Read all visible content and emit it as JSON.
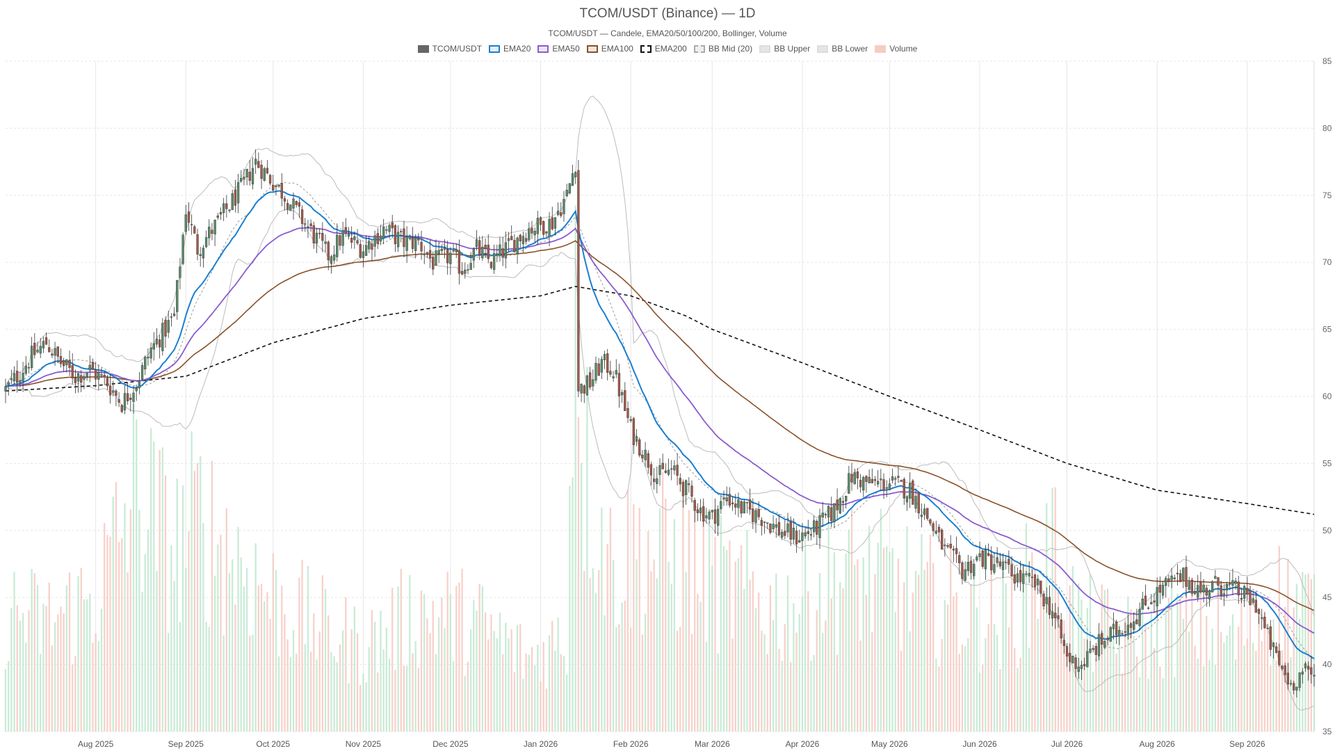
{
  "chart_data": {
    "type": "candlestick",
    "title": "TCOM/USDT (Binance) — 1D",
    "subtitle": "TCOM/USDT — Candele, EMA20/50/100/200, Bollinger, Volume",
    "legend_placement": "top-center",
    "grid": true,
    "ylim": [
      35,
      85
    ],
    "y_ticks": [
      35,
      40,
      45,
      50,
      55,
      60,
      65,
      70,
      75,
      80,
      85
    ],
    "x_range": [
      "2025-07-01",
      "2026-09-24"
    ],
    "x_ticks": [
      {
        "date": "2025-08-01",
        "label": "Aug 2025"
      },
      {
        "date": "2025-09-01",
        "label": "Sep 2025"
      },
      {
        "date": "2025-10-01",
        "label": "Oct 2025"
      },
      {
        "date": "2025-11-01",
        "label": "Nov 2025"
      },
      {
        "date": "2025-12-01",
        "label": "Dec 2025"
      },
      {
        "date": "2026-01-01",
        "label": "Jan 2026"
      },
      {
        "date": "2026-02-01",
        "label": "Feb 2026"
      },
      {
        "date": "2026-03-01",
        "label": "Mar 2026"
      },
      {
        "date": "2026-04-01",
        "label": "Apr 2026"
      },
      {
        "date": "2026-05-01",
        "label": "May 2026"
      },
      {
        "date": "2026-06-01",
        "label": "Jun 2026"
      },
      {
        "date": "2026-07-01",
        "label": "Jul 2026"
      },
      {
        "date": "2026-08-01",
        "label": "Aug 2026"
      },
      {
        "date": "2026-09-01",
        "label": "Sep 2026"
      }
    ],
    "legend": [
      {
        "name": "TCOM/USDT",
        "fill": "#666666",
        "border": "#666666",
        "dash": false
      },
      {
        "name": "EMA20",
        "fill": "#e6f0fa",
        "border": "#1a7fd1",
        "dash": false
      },
      {
        "name": "EMA50",
        "fill": "#ece4f7",
        "border": "#8a5cd0",
        "dash": false
      },
      {
        "name": "EMA100",
        "fill": "#f2e6dc",
        "border": "#8a5029",
        "dash": false
      },
      {
        "name": "EMA200",
        "fill": "#ffffff",
        "border": "#111111",
        "dash": true
      },
      {
        "name": "BB Mid (20)",
        "fill": "#eeeeee",
        "border": "#aaaaaa",
        "dash": true
      },
      {
        "name": "BB Upper",
        "fill": "#e5e5e5",
        "border": "#dddddd",
        "dash": false
      },
      {
        "name": "BB Lower",
        "fill": "#e5e5e5",
        "border": "#dddddd",
        "dash": false
      },
      {
        "name": "Volume",
        "fill": "#f6cbc4",
        "border": "#f6cbc4",
        "dash": false
      }
    ],
    "colors": {
      "up": "#5a8a6a",
      "down": "#a05a4a",
      "vol_up": "#bfe8cf",
      "vol_down": "#f6c9c1",
      "grid": "#e6e6e6"
    },
    "price_anchors": [
      [
        "2025-07-01",
        60.5
      ],
      [
        "2025-07-05",
        61.5
      ],
      [
        "2025-07-10",
        63.0
      ],
      [
        "2025-07-15",
        64.0
      ],
      [
        "2025-07-20",
        62.5
      ],
      [
        "2025-07-25",
        61.5
      ],
      [
        "2025-07-30",
        62.0
      ],
      [
        "2025-08-05",
        61.0
      ],
      [
        "2025-08-10",
        59.5
      ],
      [
        "2025-08-15",
        61.0
      ],
      [
        "2025-08-20",
        63.5
      ],
      [
        "2025-08-25",
        65.0
      ],
      [
        "2025-08-28",
        66.0
      ],
      [
        "2025-09-01",
        74.0
      ],
      [
        "2025-09-05",
        71.0
      ],
      [
        "2025-09-12",
        73.0
      ],
      [
        "2025-09-20",
        75.5
      ],
      [
        "2025-09-25",
        77.5
      ],
      [
        "2025-10-01",
        76.0
      ],
      [
        "2025-10-05",
        75.0
      ],
      [
        "2025-10-10",
        73.5
      ],
      [
        "2025-10-15",
        72.0
      ],
      [
        "2025-10-20",
        70.5
      ],
      [
        "2025-10-25",
        72.0
      ],
      [
        "2025-11-01",
        71.0
      ],
      [
        "2025-11-08",
        72.5
      ],
      [
        "2025-11-15",
        71.5
      ],
      [
        "2025-11-20",
        71.5
      ],
      [
        "2025-11-25",
        70.0
      ],
      [
        "2025-12-01",
        70.5
      ],
      [
        "2025-12-05",
        69.5
      ],
      [
        "2025-12-10",
        71.0
      ],
      [
        "2025-12-15",
        70.0
      ],
      [
        "2025-12-20",
        71.0
      ],
      [
        "2025-12-28",
        72.5
      ],
      [
        "2026-01-05",
        73.0
      ],
      [
        "2026-01-10",
        75.0
      ],
      [
        "2026-01-13",
        77.5
      ],
      [
        "2026-01-14",
        60.5
      ],
      [
        "2026-01-18",
        61.0
      ],
      [
        "2026-01-22",
        62.5
      ],
      [
        "2026-01-26",
        62.0
      ],
      [
        "2026-02-01",
        57.5
      ],
      [
        "2026-02-05",
        56.0
      ],
      [
        "2026-02-10",
        54.0
      ],
      [
        "2026-02-15",
        54.5
      ],
      [
        "2026-02-20",
        53.0
      ],
      [
        "2026-02-25",
        51.5
      ],
      [
        "2026-03-01",
        51.0
      ],
      [
        "2026-03-06",
        52.5
      ],
      [
        "2026-03-12",
        51.5
      ],
      [
        "2026-03-18",
        51.0
      ],
      [
        "2026-03-24",
        50.0
      ],
      [
        "2026-03-30",
        49.5
      ],
      [
        "2026-04-05",
        50.0
      ],
      [
        "2026-04-12",
        51.5
      ],
      [
        "2026-04-18",
        54.0
      ],
      [
        "2026-04-24",
        53.5
      ],
      [
        "2026-05-01",
        53.5
      ],
      [
        "2026-05-08",
        53.0
      ],
      [
        "2026-05-14",
        51.0
      ],
      [
        "2026-05-20",
        48.5
      ],
      [
        "2026-05-26",
        47.0
      ],
      [
        "2026-06-01",
        48.0
      ],
      [
        "2026-06-07",
        47.5
      ],
      [
        "2026-06-14",
        46.5
      ],
      [
        "2026-06-20",
        46.0
      ],
      [
        "2026-06-26",
        44.0
      ],
      [
        "2026-07-01",
        40.5
      ],
      [
        "2026-07-06",
        40.0
      ],
      [
        "2026-07-12",
        41.5
      ],
      [
        "2026-07-18",
        42.5
      ],
      [
        "2026-07-24",
        43.5
      ],
      [
        "2026-07-30",
        45.0
      ],
      [
        "2026-08-05",
        46.0
      ],
      [
        "2026-08-10",
        46.5
      ],
      [
        "2026-08-16",
        45.5
      ],
      [
        "2026-08-22",
        46.0
      ],
      [
        "2026-08-28",
        45.5
      ],
      [
        "2026-09-04",
        44.5
      ],
      [
        "2026-09-08",
        42.0
      ],
      [
        "2026-09-12",
        40.0
      ],
      [
        "2026-09-16",
        38.5
      ],
      [
        "2026-09-20",
        39.5
      ],
      [
        "2026-09-24",
        39.0
      ]
    ],
    "volume_scale_max": 100,
    "volume_anchors": [
      [
        "2025-07-01",
        20
      ],
      [
        "2025-07-15",
        18
      ],
      [
        "2025-08-01",
        22
      ],
      [
        "2025-08-15",
        40
      ],
      [
        "2025-08-28",
        30
      ],
      [
        "2025-09-05",
        35
      ],
      [
        "2025-09-20",
        28
      ],
      [
        "2025-10-01",
        22
      ],
      [
        "2025-10-15",
        18
      ],
      [
        "2025-11-01",
        14
      ],
      [
        "2025-11-20",
        20
      ],
      [
        "2025-12-10",
        18
      ],
      [
        "2025-12-28",
        12
      ],
      [
        "2026-01-10",
        16
      ],
      [
        "2026-01-13",
        85
      ],
      [
        "2026-01-16",
        45
      ],
      [
        "2026-01-25",
        28
      ],
      [
        "2026-02-05",
        30
      ],
      [
        "2026-02-20",
        28
      ],
      [
        "2026-03-05",
        24
      ],
      [
        "2026-03-25",
        20
      ],
      [
        "2026-04-15",
        26
      ],
      [
        "2026-05-05",
        24
      ],
      [
        "2026-05-25",
        20
      ],
      [
        "2026-06-10",
        18
      ],
      [
        "2026-06-26",
        30
      ],
      [
        "2026-07-05",
        18
      ],
      [
        "2026-07-25",
        15
      ],
      [
        "2026-08-10",
        18
      ],
      [
        "2026-08-28",
        15
      ],
      [
        "2026-09-12",
        22
      ],
      [
        "2026-09-24",
        20
      ]
    ],
    "ema200_anchors": [
      [
        "2025-07-01",
        60.4
      ],
      [
        "2025-08-01",
        60.8
      ],
      [
        "2025-09-01",
        61.5
      ],
      [
        "2025-10-01",
        64.0
      ],
      [
        "2025-11-01",
        65.8
      ],
      [
        "2025-12-01",
        66.8
      ],
      [
        "2026-01-01",
        67.5
      ],
      [
        "2026-01-13",
        68.2
      ],
      [
        "2026-02-01",
        67.5
      ],
      [
        "2026-02-20",
        66.0
      ],
      [
        "2026-03-01",
        65.0
      ],
      [
        "2026-04-01",
        62.5
      ],
      [
        "2026-05-01",
        60.0
      ],
      [
        "2026-06-01",
        57.5
      ],
      [
        "2026-07-01",
        55.0
      ],
      [
        "2026-08-01",
        53.0
      ],
      [
        "2026-09-01",
        52.0
      ],
      [
        "2026-09-24",
        51.2
      ]
    ]
  }
}
